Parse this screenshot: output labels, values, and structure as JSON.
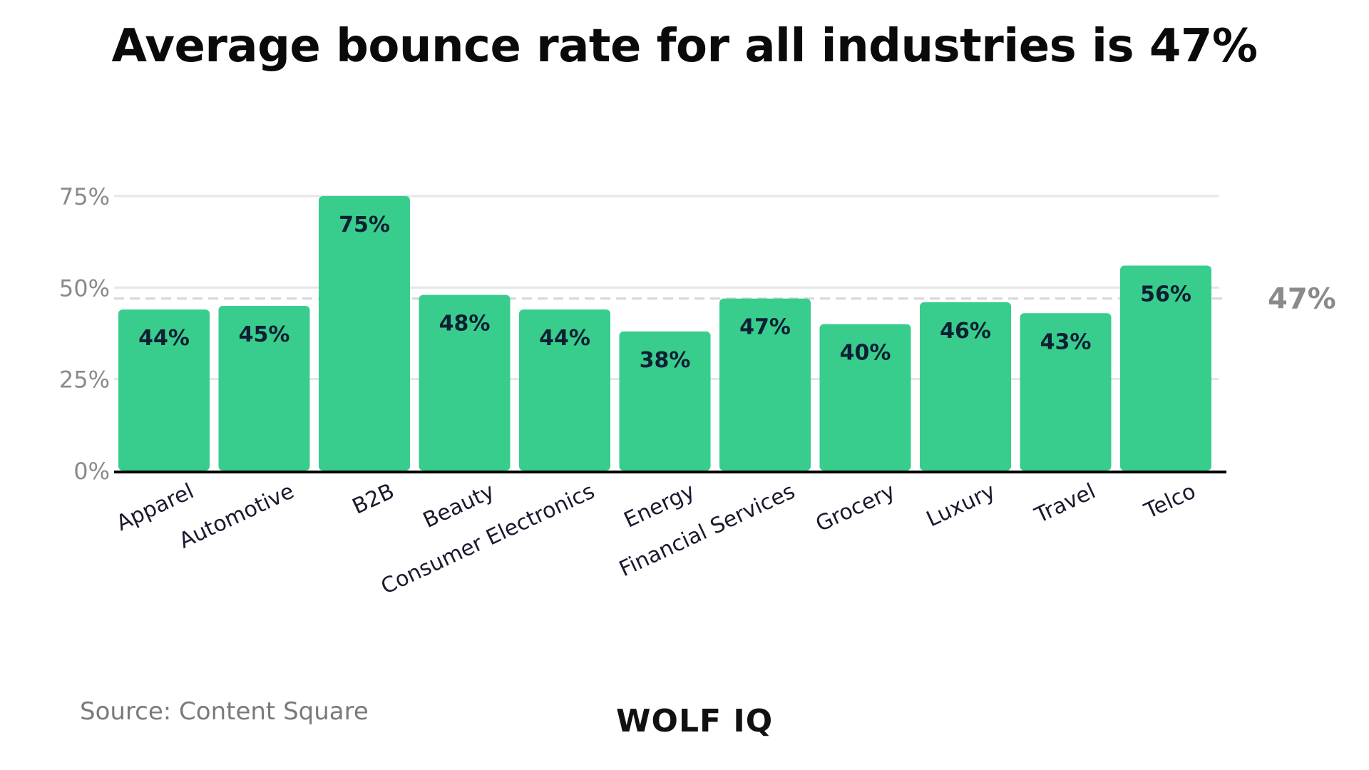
{
  "chart_data": {
    "type": "bar",
    "title": "Average bounce rate for all industries is 47%",
    "categories": [
      "Apparel",
      "Automotive",
      "B2B",
      "Beauty",
      "Consumer Electronics",
      "Energy",
      "Financial Services",
      "Grocery",
      "Luxury",
      "Travel",
      "Telco"
    ],
    "values": [
      44,
      45,
      75,
      48,
      44,
      38,
      47,
      40,
      46,
      43,
      56
    ],
    "data_labels": [
      "44%",
      "45%",
      "75%",
      "48%",
      "44%",
      "38%",
      "47%",
      "40%",
      "46%",
      "43%",
      "56%"
    ],
    "y_ticks": [
      {
        "value": 0,
        "label": "0%"
      },
      {
        "value": 25,
        "label": "25%"
      },
      {
        "value": 50,
        "label": "50%"
      },
      {
        "value": 75,
        "label": "75%"
      }
    ],
    "ylim": [
      0,
      75
    ],
    "reference_line": {
      "value": 47,
      "label": "47%"
    },
    "grid": true,
    "colors": {
      "bar": "#38cd8d",
      "grid": "#e6e6e6",
      "reference": "#d6d6d6",
      "reference_label": "#8a8a8a",
      "axis": "#000000",
      "tick_label": "#8a8a8a",
      "data_label": "#0f1f33",
      "category_label": "#1a1a2e"
    }
  },
  "source": "Source: Content Square",
  "logo": "WOLF IQ"
}
